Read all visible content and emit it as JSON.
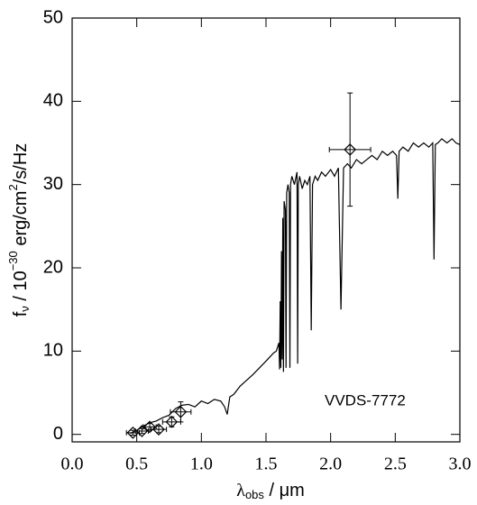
{
  "chart_data": {
    "type": "line",
    "ylabel": [
      "f",
      "ν",
      " / 10",
      "−30",
      " erg/cm",
      "2",
      "/s/Hz"
    ],
    "xlabel": [
      "λ",
      "obs",
      " / μm"
    ],
    "annotation": "VVDS-7772",
    "xlim": [
      0,
      3.0
    ],
    "ylim": [
      -0.9,
      50
    ],
    "xticks": [
      {
        "value": 0,
        "label": "0.0"
      },
      0.5,
      {
        "value": 1,
        "label": "1.0"
      },
      1.5,
      {
        "value": 2,
        "label": "2.0"
      },
      2.5,
      {
        "value": 3,
        "label": "3.0"
      }
    ],
    "yticks": [
      0,
      10,
      20,
      30,
      40,
      50
    ],
    "color": "#000000",
    "x": [
      0.45,
      0.5,
      0.55,
      0.6,
      0.65,
      0.7,
      0.75,
      0.8,
      0.85,
      0.9,
      0.95,
      1.0,
      1.05,
      1.1,
      1.15,
      1.18,
      1.2,
      1.22,
      1.25,
      1.3,
      1.35,
      1.4,
      1.45,
      1.5,
      1.53,
      1.56,
      1.58,
      1.6,
      1.605,
      1.61,
      1.615,
      1.62,
      1.625,
      1.63,
      1.635,
      1.64,
      1.65,
      1.655,
      1.66,
      1.67,
      1.68,
      1.685,
      1.69,
      1.7,
      1.72,
      1.74,
      1.745,
      1.75,
      1.76,
      1.78,
      1.8,
      1.82,
      1.84,
      1.85,
      1.86,
      1.88,
      1.9,
      1.93,
      1.96,
      2.0,
      2.03,
      2.06,
      2.08,
      2.1,
      2.13,
      2.16,
      2.2,
      2.24,
      2.28,
      2.32,
      2.36,
      2.4,
      2.44,
      2.48,
      2.51,
      2.52,
      2.53,
      2.56,
      2.6,
      2.64,
      2.68,
      2.72,
      2.76,
      2.79,
      2.8,
      2.81,
      2.83,
      2.86,
      2.9,
      2.94,
      2.97,
      3.0
    ],
    "values": [
      0.1,
      0.5,
      1.0,
      1.4,
      1.6,
      2.0,
      2.3,
      3.1,
      3.5,
      3.6,
      3.3,
      4.0,
      3.7,
      4.2,
      4.0,
      3.3,
      2.4,
      4.5,
      4.8,
      5.8,
      6.5,
      7.2,
      8.0,
      8.8,
      9.3,
      9.8,
      10.0,
      11,
      7.8,
      16,
      8,
      22,
      9,
      26,
      7.5,
      28,
      27,
      8,
      29,
      30,
      29,
      8,
      30,
      31,
      30,
      31.5,
      8.5,
      30,
      31,
      29.5,
      30.5,
      30,
      31,
      12.5,
      30,
      31,
      30.5,
      31.5,
      31,
      31.8,
      31,
      32,
      15,
      32,
      32.5,
      32,
      33,
      32.5,
      33,
      33.5,
      33,
      34,
      33.5,
      34,
      33.5,
      28.3,
      34,
      34.5,
      34,
      35,
      34.5,
      35,
      34.5,
      35,
      21,
      34.8,
      35,
      35.5,
      35,
      35.5,
      35,
      34.8
    ],
    "points": {
      "x": [
        0.47,
        0.54,
        0.6,
        0.67,
        0.77,
        0.84,
        2.15
      ],
      "values": [
        0.2,
        0.4,
        0.9,
        0.6,
        1.5,
        2.7,
        34.2
      ],
      "xerr": [
        0.05,
        0.05,
        0.05,
        0.06,
        0.07,
        0.08,
        0.16
      ],
      "yerr": [
        0.3,
        0.3,
        0.4,
        0.4,
        0.6,
        1.2,
        6.8
      ]
    }
  }
}
